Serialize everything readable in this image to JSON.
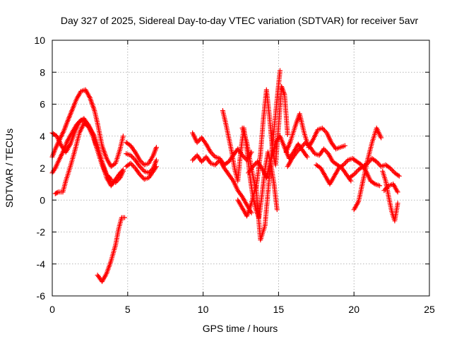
{
  "chart_data": {
    "type": "scatter",
    "title": "Day 327 of 2025, Sidereal Day-to-day VTEC variation (SDTVAR) for receiver 5avr",
    "xlabel": "GPS time / hours",
    "ylabel": "SDTVAR / TECUs",
    "xlim": [
      0,
      25
    ],
    "ylim": [
      -6,
      10
    ],
    "xticks": [
      0,
      5,
      10,
      15,
      20,
      25
    ],
    "yticks": [
      -6,
      -4,
      -2,
      0,
      2,
      4,
      6,
      8,
      10
    ],
    "grid": true,
    "marker": "plus",
    "color": "#ff0000",
    "series": [
      {
        "name": "trace-a",
        "x": [
          0.0,
          0.2,
          0.5,
          0.8,
          1.0,
          1.3,
          1.6,
          1.9,
          2.2,
          2.5,
          2.8,
          3.0,
          3.3,
          3.6,
          3.9,
          4.2,
          4.5,
          4.7
        ],
        "y": [
          2.7,
          3.2,
          3.8,
          4.4,
          4.9,
          5.6,
          6.3,
          6.8,
          6.9,
          6.4,
          5.6,
          4.8,
          3.4,
          2.6,
          2.1,
          2.3,
          3.2,
          4.0
        ]
      },
      {
        "name": "trace-b",
        "x": [
          0.0,
          0.2,
          0.5,
          0.8,
          1.0,
          1.3,
          1.6,
          1.9,
          2.2,
          2.5,
          2.8,
          3.0,
          3.3,
          3.6,
          3.9,
          4.2,
          4.5,
          4.7
        ],
        "y": [
          1.7,
          2.0,
          2.6,
          3.2,
          3.7,
          4.2,
          4.7,
          5.0,
          4.9,
          4.5,
          4.0,
          3.4,
          2.4,
          1.6,
          1.2,
          1.1,
          1.4,
          1.8
        ]
      },
      {
        "name": "trace-c",
        "x": [
          0.2,
          0.4,
          0.7,
          0.9,
          1.2,
          1.5,
          1.8,
          2.1,
          2.4,
          2.7,
          3.0,
          3.3,
          3.6,
          3.9,
          4.2,
          4.5,
          4.7
        ],
        "y": [
          0.4,
          0.5,
          0.5,
          1.2,
          2.1,
          3.1,
          4.2,
          4.8,
          4.6,
          4.0,
          3.2,
          2.3,
          1.4,
          0.9,
          1.3,
          1.7,
          1.9
        ]
      },
      {
        "name": "trace-d",
        "x": [
          0.0,
          0.3,
          0.6,
          0.9,
          1.2,
          1.5,
          1.8,
          2.1,
          2.4,
          2.7,
          3.0,
          3.3,
          3.6,
          3.9
        ],
        "y": [
          4.2,
          4.0,
          3.4,
          3.0,
          3.5,
          4.3,
          4.9,
          5.1,
          4.7,
          4.0,
          3.1,
          2.2,
          1.6,
          1.3
        ]
      },
      {
        "name": "trace-e",
        "x": [
          3.0,
          3.3,
          3.6,
          3.9,
          4.2,
          4.4,
          4.6,
          4.8
        ],
        "y": [
          -4.7,
          -5.1,
          -4.6,
          -3.8,
          -2.8,
          -1.8,
          -1.1,
          -1.1
        ]
      },
      {
        "name": "trace-f",
        "x": [
          4.9,
          5.2,
          5.5,
          5.8,
          6.1,
          6.4,
          6.7,
          6.9
        ],
        "y": [
          3.6,
          3.4,
          3.0,
          2.5,
          2.2,
          2.3,
          2.8,
          3.3
        ]
      },
      {
        "name": "trace-g",
        "x": [
          4.9,
          5.2,
          5.5,
          5.8,
          6.1,
          6.4,
          6.7,
          6.9
        ],
        "y": [
          2.9,
          2.8,
          2.5,
          2.1,
          1.8,
          1.7,
          2.0,
          2.5
        ]
      },
      {
        "name": "trace-h",
        "x": [
          4.9,
          5.2,
          5.5,
          5.8,
          6.1,
          6.4,
          6.7,
          6.9
        ],
        "y": [
          2.1,
          2.3,
          2.0,
          1.6,
          1.3,
          1.4,
          1.8,
          2.1
        ]
      },
      {
        "name": "trace-i",
        "x": [
          9.3,
          9.6,
          9.9,
          10.2,
          10.5,
          10.8,
          11.1,
          11.4,
          11.7,
          12.0,
          12.3,
          12.6,
          12.9,
          13.2
        ],
        "y": [
          4.2,
          3.6,
          3.9,
          3.5,
          3.0,
          2.7,
          2.6,
          2.2,
          2.4,
          2.8,
          3.2,
          2.8,
          2.5,
          3.0
        ]
      },
      {
        "name": "trace-j",
        "x": [
          9.3,
          9.6,
          9.9,
          10.2,
          10.5,
          10.8,
          11.1,
          11.4,
          11.7,
          12.0,
          12.3,
          12.6,
          12.9,
          13.2
        ],
        "y": [
          2.5,
          2.8,
          2.4,
          2.7,
          2.3,
          2.2,
          2.5,
          2.0,
          1.6,
          1.2,
          0.6,
          0.2,
          -0.3,
          -0.8
        ]
      },
      {
        "name": "trace-k",
        "x": [
          11.3,
          11.5,
          11.7,
          11.9,
          12.1,
          12.3,
          12.5,
          12.7,
          12.9,
          13.1,
          13.3,
          13.5,
          13.7,
          13.9,
          14.1,
          14.3,
          14.5,
          14.7,
          14.9
        ],
        "y": [
          5.6,
          4.8,
          3.9,
          3.0,
          1.9,
          1.2,
          3.1,
          4.5,
          3.2,
          1.5,
          0.2,
          -0.6,
          -1.1,
          0.3,
          1.9,
          3.0,
          2.2,
          1.0,
          -0.6
        ]
      },
      {
        "name": "trace-l",
        "x": [
          12.3,
          12.6,
          12.9,
          13.2,
          13.5,
          13.8,
          14.1,
          14.3,
          14.5,
          14.7,
          14.9,
          15.1
        ],
        "y": [
          0.0,
          -0.5,
          -1.0,
          -0.2,
          0.9,
          -2.5,
          -1.6,
          0.5,
          2.6,
          4.4,
          6.3,
          8.1
        ]
      },
      {
        "name": "trace-m",
        "x": [
          12.6,
          12.9,
          13.2,
          13.5,
          13.8,
          14.0,
          14.2,
          14.4,
          14.6,
          14.8,
          15.0,
          15.2,
          15.4,
          15.6
        ],
        "y": [
          4.5,
          3.6,
          2.0,
          0.6,
          2.9,
          5.1,
          6.9,
          5.2,
          3.1,
          2.2,
          4.6,
          7.1,
          6.6,
          4.1
        ]
      },
      {
        "name": "trace-n",
        "x": [
          13.0,
          13.3,
          13.6,
          13.9,
          14.2,
          14.5,
          14.8,
          15.1,
          15.4,
          15.7,
          16.0,
          16.3,
          16.6,
          16.9
        ],
        "y": [
          1.7,
          2.1,
          2.4,
          2.0,
          1.4,
          2.5,
          3.6,
          4.0,
          3.3,
          2.6,
          3.0,
          3.5,
          3.1,
          2.7
        ]
      },
      {
        "name": "trace-o",
        "x": [
          15.5,
          15.8,
          16.1,
          16.4,
          16.7,
          17.0,
          17.3,
          17.6,
          17.9,
          18.2,
          18.5,
          18.8,
          19.1,
          19.4
        ],
        "y": [
          3.0,
          3.7,
          4.6,
          5.4,
          4.2,
          3.3,
          3.8,
          4.4,
          4.5,
          4.2,
          3.6,
          3.2,
          3.3,
          3.4
        ]
      },
      {
        "name": "trace-p",
        "x": [
          15.6,
          15.9,
          16.2,
          16.5,
          16.8,
          17.1,
          17.4,
          17.7,
          18.0,
          18.3,
          18.6,
          18.9,
          19.2,
          19.5,
          19.8
        ],
        "y": [
          2.1,
          2.6,
          3.0,
          3.3,
          3.6,
          3.3,
          2.9,
          2.8,
          3.2,
          2.9,
          2.4,
          2.2,
          2.0,
          1.6,
          1.2
        ]
      },
      {
        "name": "trace-q",
        "x": [
          17.5,
          17.8,
          18.1,
          18.4,
          18.7,
          19.0,
          19.3,
          19.6,
          19.9,
          20.2,
          20.5,
          20.8,
          21.1,
          21.4,
          21.7
        ],
        "y": [
          2.2,
          2.0,
          1.5,
          1.0,
          1.5,
          2.0,
          2.2,
          2.5,
          2.6,
          2.4,
          2.2,
          1.8,
          1.2,
          1.0,
          0.9
        ]
      },
      {
        "name": "trace-r",
        "x": [
          20.0,
          20.3,
          20.6,
          20.9,
          21.2,
          21.5,
          21.8
        ],
        "y": [
          -0.6,
          -0.1,
          1.2,
          2.5,
          3.6,
          4.5,
          3.9
        ]
      },
      {
        "name": "trace-s",
        "x": [
          19.7,
          20.0,
          20.3,
          20.6,
          20.9,
          21.2,
          21.5,
          21.8,
          22.1,
          22.4,
          22.7,
          23.0
        ],
        "y": [
          1.4,
          1.6,
          1.9,
          2.1,
          2.3,
          2.6,
          2.4,
          2.1,
          2.2,
          2.0,
          1.7,
          1.5
        ]
      },
      {
        "name": "trace-t",
        "x": [
          21.9,
          22.1,
          22.3,
          22.5,
          22.7,
          22.9
        ],
        "y": [
          1.8,
          1.2,
          0.2,
          -0.7,
          -1.3,
          -0.2
        ]
      },
      {
        "name": "trace-u",
        "x": [
          22.0,
          22.3,
          22.6,
          22.9
        ],
        "y": [
          0.6,
          0.9,
          1.0,
          0.5
        ]
      }
    ]
  }
}
